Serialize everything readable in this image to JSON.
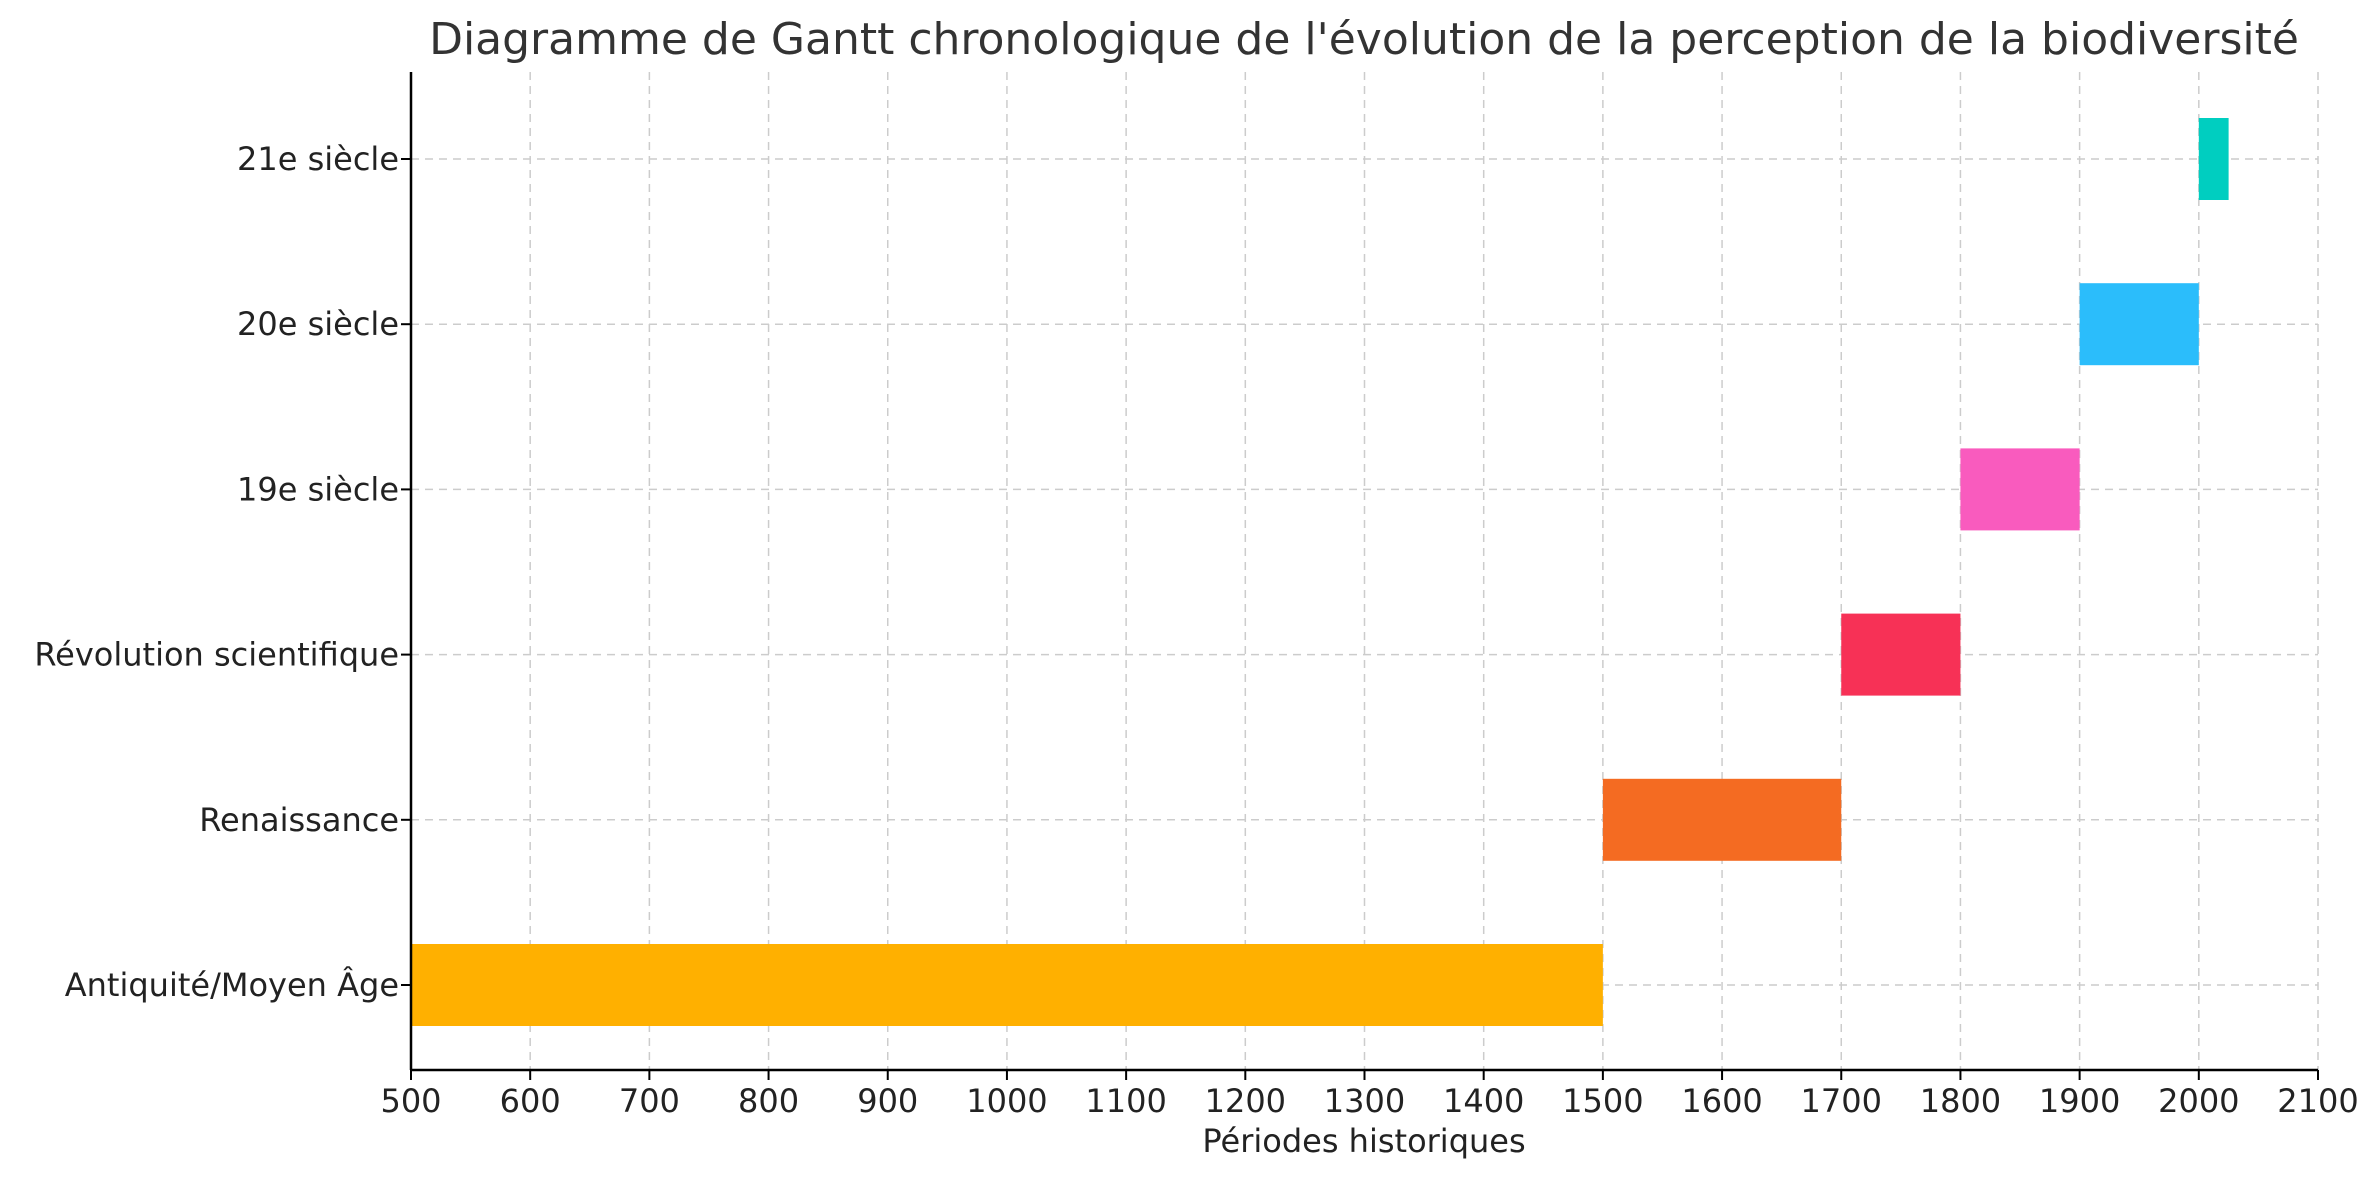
{
  "chart_data": {
    "type": "bar",
    "orientation": "horizontal-gantt",
    "title": "Diagramme de Gantt chronologique de l'évolution de la perception de la biodiversité",
    "xlabel": "Périodes historiques",
    "ylabel": "",
    "xlim": [
      500,
      2100
    ],
    "xticks": [
      500,
      600,
      700,
      800,
      900,
      1000,
      1100,
      1200,
      1300,
      1400,
      1500,
      1600,
      1700,
      1800,
      1900,
      2000,
      2100
    ],
    "grid": true,
    "tasks": [
      {
        "label": "Antiquité/Moyen Âge",
        "start": 500,
        "end": 1500,
        "color": "#FFB000"
      },
      {
        "label": "Renaissance",
        "start": 1500,
        "end": 1700,
        "color": "#F46B22"
      },
      {
        "label": "Révolution scientifique",
        "start": 1700,
        "end": 1800,
        "color": "#F73156"
      },
      {
        "label": "19e siècle",
        "start": 1800,
        "end": 1900,
        "color": "#F95BBE"
      },
      {
        "label": "20e siècle",
        "start": 1900,
        "end": 2000,
        "color": "#2BBDFB"
      },
      {
        "label": "21e siècle",
        "start": 2000,
        "end": 2025,
        "color": "#00CEC0"
      }
    ]
  }
}
